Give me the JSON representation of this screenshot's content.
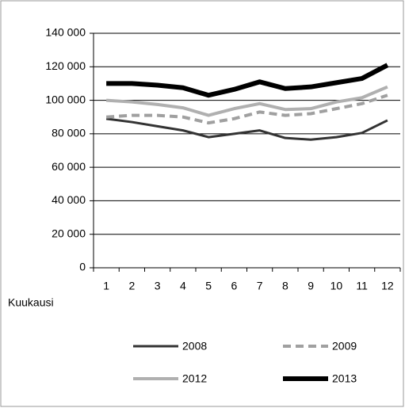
{
  "chart_data": {
    "type": "line",
    "x_label": "Kuukausi",
    "categories": [
      "1",
      "2",
      "3",
      "4",
      "5",
      "6",
      "7",
      "8",
      "9",
      "10",
      "11",
      "12"
    ],
    "series": [
      {
        "name": "2008",
        "color": "#333333",
        "values": [
          89000,
          87000,
          84500,
          82000,
          78000,
          80000,
          82000,
          77500,
          76500,
          78000,
          80500,
          88000
        ]
      },
      {
        "name": "2009",
        "color": "#a0a0a0",
        "dashed": true,
        "values": [
          90000,
          91000,
          91000,
          90000,
          86500,
          89000,
          93000,
          91000,
          92000,
          95000,
          98000,
          103000
        ]
      },
      {
        "name": "2012",
        "color": "#b0b0b0",
        "values": [
          100000,
          99000,
          97500,
          95500,
          91000,
          95000,
          98000,
          94500,
          95000,
          99000,
          101500,
          108000
        ]
      },
      {
        "name": "2013",
        "color": "#000000",
        "values": [
          110000,
          110000,
          109000,
          107500,
          103000,
          106500,
          111000,
          107000,
          108000,
          110500,
          113000,
          121000
        ]
      }
    ],
    "ylim": [
      0,
      140000
    ],
    "yticks": [
      0,
      {
        "value": 20000,
        "label": "20 000"
      },
      {
        "value": 40000,
        "label": "40 000"
      },
      {
        "value": 60000,
        "label": "60 000"
      },
      {
        "value": 80000,
        "label": "80 000"
      },
      {
        "value": 100000,
        "label": "100 000"
      },
      {
        "value": 120000,
        "label": "120 000"
      },
      {
        "value": 140000,
        "label": "140 000"
      }
    ],
    "grid": true,
    "legend": "bottom"
  }
}
